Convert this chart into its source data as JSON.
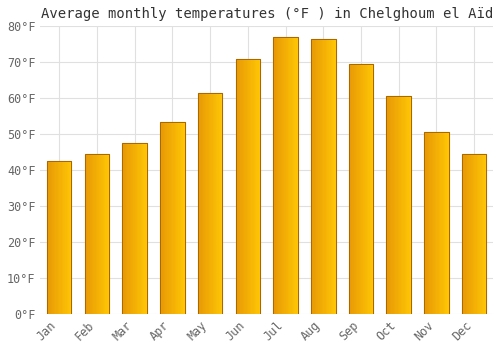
{
  "title": "Average monthly temperatures (°F ) in Chelghoum el Aïd",
  "months": [
    "Jan",
    "Feb",
    "Mar",
    "Apr",
    "May",
    "Jun",
    "Jul",
    "Aug",
    "Sep",
    "Oct",
    "Nov",
    "Dec"
  ],
  "values": [
    42.5,
    44.5,
    47.5,
    53.5,
    61.5,
    71.0,
    77.0,
    76.5,
    69.5,
    60.5,
    50.5,
    44.5
  ],
  "bar_color_left": "#E8890A",
  "bar_color_right": "#FFB800",
  "bar_color_top": "#FFD040",
  "background_color": "#FFFFFF",
  "grid_color": "#E0E0E0",
  "text_color": "#666666",
  "ylim": [
    0,
    80
  ],
  "yticks": [
    0,
    10,
    20,
    30,
    40,
    50,
    60,
    70,
    80
  ],
  "ytick_labels": [
    "0°F",
    "10°F",
    "20°F",
    "30°F",
    "40°F",
    "50°F",
    "60°F",
    "70°F",
    "80°F"
  ],
  "title_fontsize": 10,
  "tick_fontsize": 8.5
}
